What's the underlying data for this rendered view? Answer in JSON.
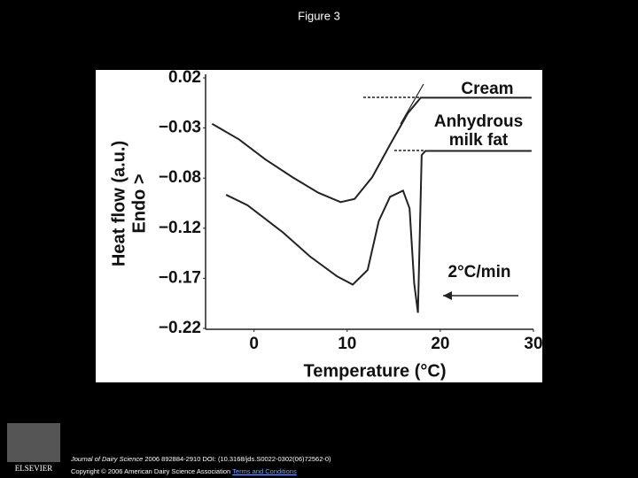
{
  "title": "Figure 3",
  "chart_data": {
    "type": "line",
    "y_label": "Heat flow (a.u.)",
    "y_sublabel": "Endo >",
    "x_label": "Temperature (°C)",
    "annotation": "2°C/min",
    "xlim": [
      -5.2,
      30
    ],
    "xticks": [
      0,
      10,
      20,
      30
    ],
    "ylim": [
      -0.22,
      0.02
    ],
    "yticks": [
      {
        "value": 0.02,
        "label": "0.02"
      },
      {
        "value": -0.028,
        "label": "−0.03"
      },
      {
        "value": -0.076,
        "label": "−0.08"
      },
      {
        "value": -0.124,
        "label": "−0.12"
      },
      {
        "value": -0.172,
        "label": "−0.17"
      },
      {
        "value": -0.22,
        "label": "−0.22"
      }
    ],
    "grid": false,
    "series": [
      {
        "name": "Cream",
        "color": "#222222",
        "x": [
          -4.5,
          -1.6,
          1.2,
          4.1,
          6.9,
          9.3,
          10.8,
          12.7,
          14.6,
          16.5,
          17.9,
          29.8
        ],
        "values": [
          -0.024,
          -0.039,
          -0.058,
          -0.075,
          -0.09,
          -0.099,
          -0.096,
          -0.075,
          -0.044,
          -0.014,
          0.001,
          0.001
        ]
      },
      {
        "name": "Anhydrous milk fat",
        "color": "#222222",
        "x": [
          -3,
          -0.7,
          3.1,
          6,
          8.9,
          10.6,
          12.2,
          13.4,
          14.6,
          16,
          16.7,
          17.2,
          17.6,
          18,
          18.4,
          29.8
        ],
        "values": [
          -0.092,
          -0.102,
          -0.128,
          -0.151,
          -0.17,
          -0.178,
          -0.164,
          -0.117,
          -0.094,
          -0.088,
          -0.105,
          -0.177,
          -0.205,
          -0.054,
          -0.05,
          -0.05
        ]
      }
    ]
  },
  "footer": {
    "publisher": "ELSEVIER",
    "journal": "Journal of Dairy Science",
    "citation": "2006 892884-2910 DOI: (10.3168/jds.S0022-0302(06)72562-0)",
    "copyright": "Copyright © 2006 American Dairy Science Association",
    "link": "Terms and Conditions"
  }
}
